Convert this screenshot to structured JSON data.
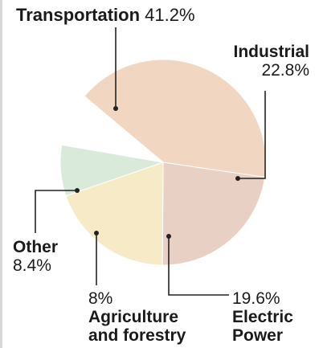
{
  "chart_data": {
    "type": "pie",
    "slices": [
      {
        "label": "Transportation",
        "value": 41.2,
        "display": "41.2%",
        "color": "#f1d7c2"
      },
      {
        "label": "Industrial",
        "value": 22.8,
        "display": "22.8%",
        "color": "#e8d1c4"
      },
      {
        "label": "Electric Power",
        "label_lines": [
          "Electric",
          "Power"
        ],
        "value": 19.6,
        "display": "19.6%",
        "color": "#f6eac7"
      },
      {
        "label": "Agriculture and forestry",
        "label_lines": [
          "Agriculture",
          "and forestry"
        ],
        "value": 8.0,
        "display": "8%",
        "color": "#d9eadb"
      },
      {
        "label": "Other",
        "value": 8.4,
        "display": "8.4%",
        "color": "#ffffff"
      }
    ]
  }
}
